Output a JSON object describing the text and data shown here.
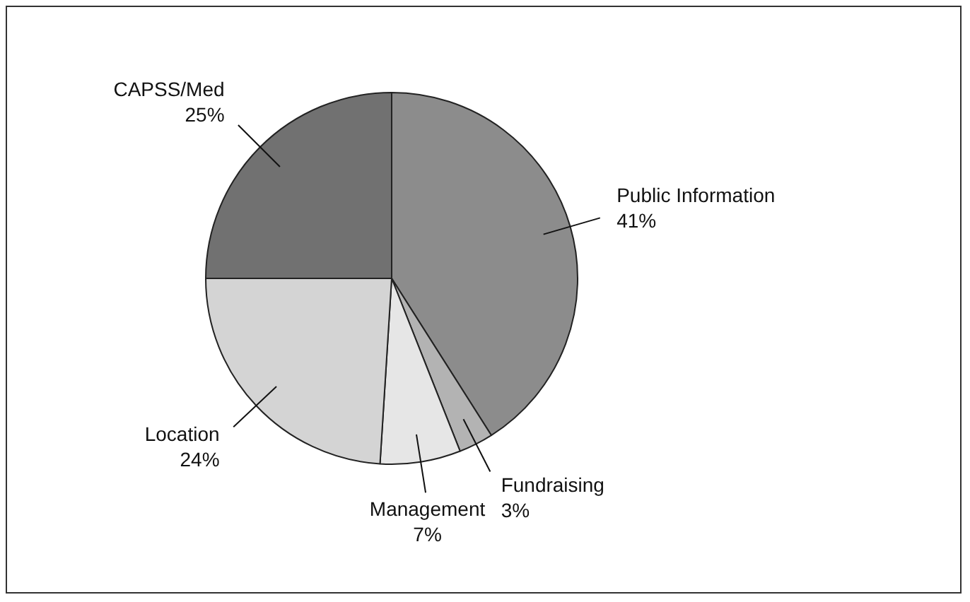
{
  "chart_data": {
    "type": "pie",
    "categories": [
      "Public Information",
      "Fundraising",
      "Management",
      "Location",
      "CAPSS/Med"
    ],
    "values": [
      41,
      3,
      7,
      24,
      25
    ],
    "colors": [
      "#8c8c8c",
      "#b3b3b3",
      "#e6e6e6",
      "#d4d4d4",
      "#717171"
    ],
    "value_labels": [
      "41%",
      "3%",
      "7%",
      "24%",
      "25%"
    ],
    "legend": false
  }
}
